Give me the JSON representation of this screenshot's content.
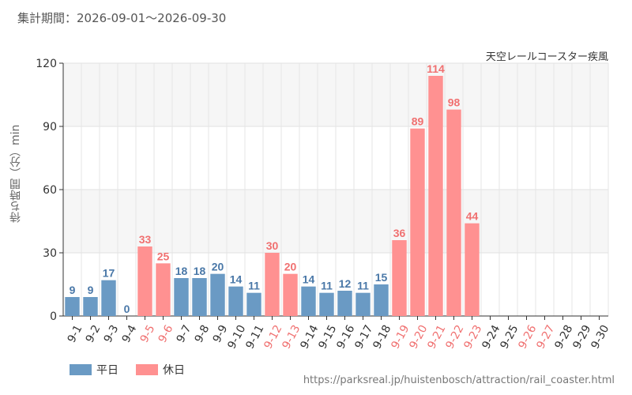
{
  "header": {
    "period_label": "集計期間：2026-09-01～2026-09-30",
    "attraction_name": "天空レールコースター疾風"
  },
  "legend": {
    "weekday_label": "平日",
    "holiday_label": "休日"
  },
  "source_url": "https://parksreal.jp/huistenbosch/attraction/rail_coaster.html",
  "colors": {
    "weekday": "#6a9ac4",
    "holiday": "#ff9191",
    "weekday_text": "#4a78a8",
    "holiday_text": "#f07070"
  },
  "chart_data": {
    "type": "bar",
    "title": "",
    "xlabel": "",
    "ylabel": "待ち時間（分）min",
    "ylim": [
      0,
      120
    ],
    "yticks": [
      0,
      30,
      60,
      90,
      120
    ],
    "grid": true,
    "legend_position": "bottom-left",
    "categories": [
      "9-1",
      "9-2",
      "9-3",
      "9-4",
      "9-5",
      "9-6",
      "9-7",
      "9-8",
      "9-9",
      "9-10",
      "9-11",
      "9-12",
      "9-13",
      "9-14",
      "9-15",
      "9-16",
      "9-17",
      "9-18",
      "9-19",
      "9-20",
      "9-21",
      "9-22",
      "9-23",
      "9-24",
      "9-25",
      "9-26",
      "9-27",
      "9-28",
      "9-29",
      "9-30"
    ],
    "values": [
      9,
      9,
      17,
      0,
      33,
      25,
      18,
      18,
      20,
      14,
      11,
      30,
      20,
      14,
      11,
      12,
      11,
      15,
      36,
      89,
      114,
      98,
      44,
      null,
      null,
      null,
      null,
      null,
      null,
      null
    ],
    "day_type": [
      "weekday",
      "weekday",
      "weekday",
      "weekday",
      "holiday",
      "holiday",
      "weekday",
      "weekday",
      "weekday",
      "weekday",
      "weekday",
      "holiday",
      "holiday",
      "weekday",
      "weekday",
      "weekday",
      "weekday",
      "weekday",
      "holiday",
      "holiday",
      "holiday",
      "holiday",
      "holiday",
      "weekday",
      "weekday",
      "holiday",
      "holiday",
      "weekday",
      "weekday",
      "weekday"
    ]
  }
}
